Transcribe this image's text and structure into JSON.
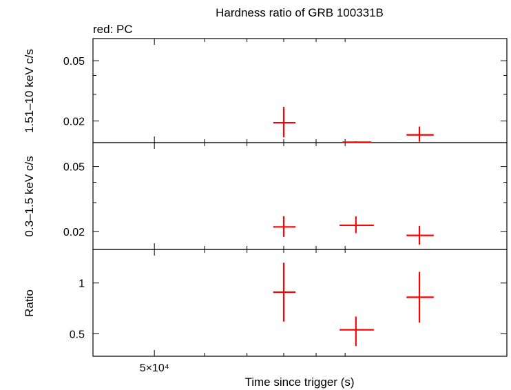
{
  "chart_data": {
    "type": "scatter",
    "title": "Hardness ratio of GRB 100331B",
    "legend_note": "red: PC",
    "xlabel": "Time since trigger (s)",
    "x_scale": "log",
    "xlim": [
      40000,
      180000
    ],
    "x_ticks": [
      {
        "value": 50000,
        "label": "5×10⁴"
      }
    ],
    "x_minor_ticks": [
      60000,
      70000,
      80000,
      90000,
      100000,
      200000
    ],
    "panels": [
      {
        "id": "hard",
        "ylabel": "1.51–10 keV c/s",
        "y_scale": "log",
        "ylim": [
          0.0144,
          0.07
        ],
        "y_ticks": [
          {
            "value": 0.02,
            "label": "0.02"
          },
          {
            "value": 0.05,
            "label": "0.05"
          }
        ],
        "y_minor_ticks": [
          0.03,
          0.04
        ],
        "series": [
          {
            "color": "#ff0000",
            "points": [
              {
                "x": 80000,
                "xlo": 77000,
                "xhi": 83500,
                "y": 0.0195,
                "ylo": 0.0156,
                "yhi": 0.0248
              },
              {
                "x": 104000,
                "xlo": 99000,
                "xhi": 110000,
                "y": 0.0145,
                "ylo": 0.0145,
                "yhi": 0.0147
              },
              {
                "x": 131000,
                "xlo": 125000,
                "xhi": 138000,
                "y": 0.0162,
                "ylo": 0.0146,
                "yhi": 0.0184
              }
            ]
          }
        ]
      },
      {
        "id": "soft",
        "ylabel": "0.3–1.5 keV c/s",
        "y_scale": "log",
        "ylim": [
          0.0155,
          0.07
        ],
        "y_ticks": [
          {
            "value": 0.02,
            "label": "0.02"
          },
          {
            "value": 0.05,
            "label": "0.05"
          }
        ],
        "y_minor_ticks": [
          0.03,
          0.04
        ],
        "series": [
          {
            "color": "#ff0000",
            "points": [
              {
                "x": 80000,
                "xlo": 77000,
                "xhi": 83500,
                "y": 0.0213,
                "ylo": 0.0185,
                "yhi": 0.0248
              },
              {
                "x": 104000,
                "xlo": 98000,
                "xhi": 111000,
                "y": 0.0218,
                "ylo": 0.0195,
                "yhi": 0.0247
              },
              {
                "x": 131000,
                "xlo": 125000,
                "xhi": 138000,
                "y": 0.0189,
                "ylo": 0.0166,
                "yhi": 0.0216
              }
            ]
          }
        ]
      },
      {
        "id": "ratio",
        "ylabel": "Ratio",
        "y_scale": "linear",
        "ylim": [
          0.28,
          1.33
        ],
        "y_ticks": [
          {
            "value": 0.5,
            "label": "0.5"
          },
          {
            "value": 1,
            "label": "1"
          }
        ],
        "y_minor_ticks": [],
        "series": [
          {
            "color": "#ff0000",
            "points": [
              {
                "x": 80000,
                "xlo": 77000,
                "xhi": 83500,
                "y": 0.91,
                "ylo": 0.62,
                "yhi": 1.2
              },
              {
                "x": 104000,
                "xlo": 98000,
                "xhi": 111000,
                "y": 0.54,
                "ylo": 0.38,
                "yhi": 0.67
              },
              {
                "x": 131000,
                "xlo": 125000,
                "xhi": 138000,
                "y": 0.86,
                "ylo": 0.61,
                "yhi": 1.11
              }
            ]
          }
        ]
      }
    ]
  }
}
